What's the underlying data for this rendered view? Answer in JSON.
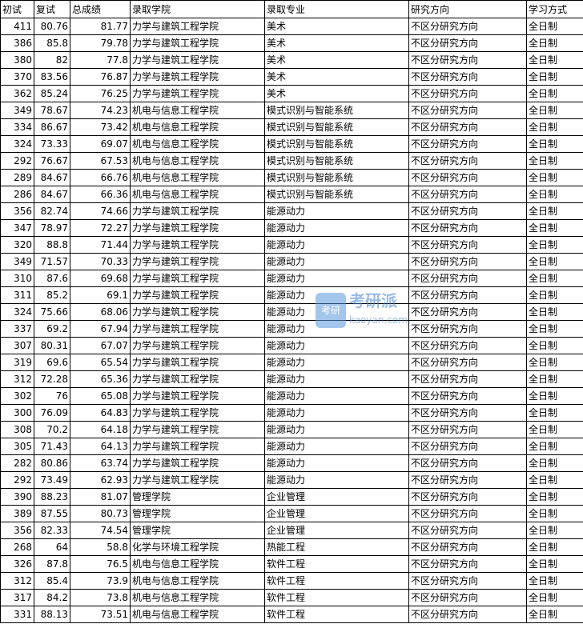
{
  "headers": [
    "初试",
    "复试",
    "总成绩",
    "录取学院",
    "录取专业",
    "研究方向",
    "学习方式"
  ],
  "rows": [
    [
      "411",
      "80.76",
      "81.77",
      "力学与建筑工程学院",
      "美术",
      "不区分研究方向",
      "全日制"
    ],
    [
      "386",
      "85.8",
      "79.78",
      "力学与建筑工程学院",
      "美术",
      "不区分研究方向",
      "全日制"
    ],
    [
      "380",
      "82",
      "77.8",
      "力学与建筑工程学院",
      "美术",
      "不区分研究方向",
      "全日制"
    ],
    [
      "370",
      "83.56",
      "76.87",
      "力学与建筑工程学院",
      "美术",
      "不区分研究方向",
      "全日制"
    ],
    [
      "362",
      "85.24",
      "76.25",
      "力学与建筑工程学院",
      "美术",
      "不区分研究方向",
      "全日制"
    ],
    [
      "349",
      "78.67",
      "74.23",
      "机电与信息工程学院",
      "模式识别与智能系统",
      "不区分研究方向",
      "全日制"
    ],
    [
      "334",
      "86.67",
      "73.42",
      "机电与信息工程学院",
      "模式识别与智能系统",
      "不区分研究方向",
      "全日制"
    ],
    [
      "324",
      "73.33",
      "69.07",
      "机电与信息工程学院",
      "模式识别与智能系统",
      "不区分研究方向",
      "全日制"
    ],
    [
      "292",
      "76.67",
      "67.53",
      "机电与信息工程学院",
      "模式识别与智能系统",
      "不区分研究方向",
      "全日制"
    ],
    [
      "289",
      "84.67",
      "66.76",
      "机电与信息工程学院",
      "模式识别与智能系统",
      "不区分研究方向",
      "全日制"
    ],
    [
      "286",
      "84.67",
      "66.36",
      "机电与信息工程学院",
      "模式识别与智能系统",
      "不区分研究方向",
      "全日制"
    ],
    [
      "356",
      "82.74",
      "74.66",
      "力学与建筑工程学院",
      "能源动力",
      "不区分研究方向",
      "全日制"
    ],
    [
      "347",
      "78.97",
      "72.27",
      "力学与建筑工程学院",
      "能源动力",
      "不区分研究方向",
      "全日制"
    ],
    [
      "320",
      "88.8",
      "71.44",
      "力学与建筑工程学院",
      "能源动力",
      "不区分研究方向",
      "全日制"
    ],
    [
      "349",
      "71.57",
      "70.33",
      "力学与建筑工程学院",
      "能源动力",
      "不区分研究方向",
      "全日制"
    ],
    [
      "310",
      "87.6",
      "69.68",
      "力学与建筑工程学院",
      "能源动力",
      "不区分研究方向",
      "全日制"
    ],
    [
      "311",
      "85.2",
      "69.1",
      "力学与建筑工程学院",
      "能源动力",
      "不区分研究方向",
      "全日制"
    ],
    [
      "324",
      "75.66",
      "68.06",
      "力学与建筑工程学院",
      "能源动力",
      "不区分研究方向",
      "全日制"
    ],
    [
      "337",
      "69.2",
      "67.94",
      "力学与建筑工程学院",
      "能源动力",
      "不区分研究方向",
      "全日制"
    ],
    [
      "307",
      "80.31",
      "67.07",
      "力学与建筑工程学院",
      "能源动力",
      "不区分研究方向",
      "全日制"
    ],
    [
      "319",
      "69.6",
      "65.54",
      "力学与建筑工程学院",
      "能源动力",
      "不区分研究方向",
      "全日制"
    ],
    [
      "312",
      "72.28",
      "65.36",
      "力学与建筑工程学院",
      "能源动力",
      "不区分研究方向",
      "全日制"
    ],
    [
      "302",
      "76",
      "65.08",
      "力学与建筑工程学院",
      "能源动力",
      "不区分研究方向",
      "全日制"
    ],
    [
      "300",
      "76.09",
      "64.83",
      "力学与建筑工程学院",
      "能源动力",
      "不区分研究方向",
      "全日制"
    ],
    [
      "308",
      "70.2",
      "64.18",
      "力学与建筑工程学院",
      "能源动力",
      "不区分研究方向",
      "全日制"
    ],
    [
      "305",
      "71.43",
      "64.13",
      "力学与建筑工程学院",
      "能源动力",
      "不区分研究方向",
      "全日制"
    ],
    [
      "282",
      "80.86",
      "63.74",
      "力学与建筑工程学院",
      "能源动力",
      "不区分研究方向",
      "全日制"
    ],
    [
      "292",
      "73.49",
      "62.93",
      "力学与建筑工程学院",
      "能源动力",
      "不区分研究方向",
      "全日制"
    ],
    [
      "390",
      "88.23",
      "81.07",
      "管理学院",
      "企业管理",
      "不区分研究方向",
      "全日制"
    ],
    [
      "389",
      "87.55",
      "80.73",
      "管理学院",
      "企业管理",
      "不区分研究方向",
      "全日制"
    ],
    [
      "356",
      "82.33",
      "74.54",
      "管理学院",
      "企业管理",
      "不区分研究方向",
      "全日制"
    ],
    [
      "268",
      "64",
      "58.8",
      "化学与环境工程学院",
      "热能工程",
      "不区分研究方向",
      "全日制"
    ],
    [
      "326",
      "87.8",
      "76.5",
      "机电与信息工程学院",
      "软件工程",
      "不区分研究方向",
      "全日制"
    ],
    [
      "312",
      "85.4",
      "73.9",
      "机电与信息工程学院",
      "软件工程",
      "不区分研究方向",
      "全日制"
    ],
    [
      "317",
      "84.2",
      "73.8",
      "机电与信息工程学院",
      "软件工程",
      "不区分研究方向",
      "全日制"
    ],
    [
      "331",
      "88.13",
      "73.51",
      "机电与信息工程学院",
      "软件工程",
      "不区分研究方向",
      "全日制"
    ]
  ],
  "watermark": {
    "badge": "考研",
    "name": "考研派",
    "domain": "kaoyan.com"
  }
}
